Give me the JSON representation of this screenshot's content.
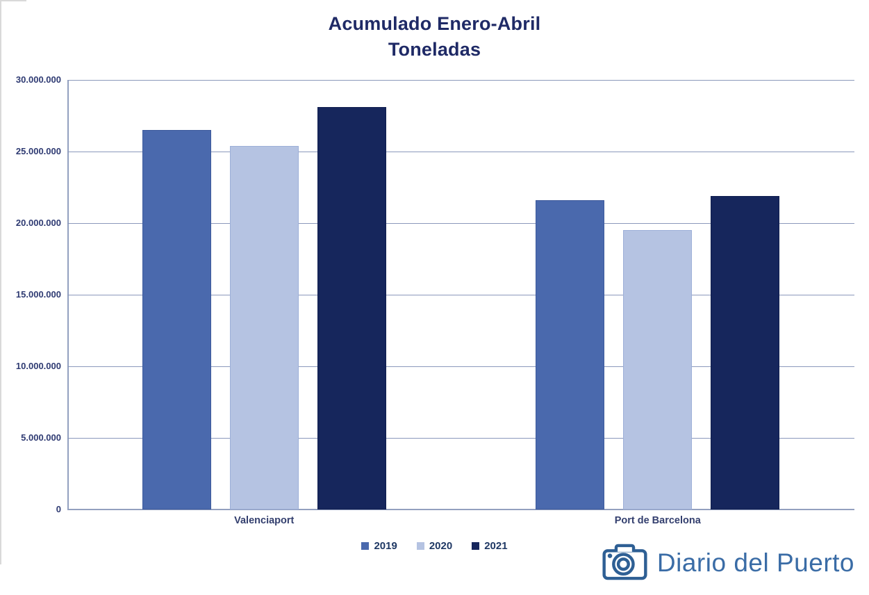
{
  "title": {
    "line1": "Acumulado Enero-Abril",
    "line2": "Toneladas"
  },
  "chart_data": {
    "type": "bar",
    "title": "Acumulado Enero-Abril",
    "subtitle": "Toneladas",
    "categories": [
      "Valenciaport",
      "Port de Barcelona"
    ],
    "series": [
      {
        "name": "2019",
        "color": "#4a69ad",
        "border": "#3d5a9c",
        "values": [
          26500000,
          21600000
        ]
      },
      {
        "name": "2020",
        "color": "#b5c3e2",
        "border": "#9dafd8",
        "values": [
          25400000,
          19500000
        ]
      },
      {
        "name": "2021",
        "color": "#16265c",
        "border": "#0f1d4e",
        "values": [
          28100000,
          21900000
        ]
      }
    ],
    "ylim": [
      0,
      30000000
    ],
    "ytick_step": 5000000,
    "ytick_labels": [
      "0",
      "5.000.000",
      "10.000.000",
      "15.000.000",
      "20.000.000",
      "25.000.000",
      "30.000.000"
    ],
    "grid": true,
    "legend_position": "bottom",
    "xlabel": "",
    "ylabel": ""
  },
  "watermark": {
    "text": "Diario del Puerto",
    "icon": "camera-icon",
    "color": "#3a6ca6"
  },
  "colors": {
    "title_text": "#1f2a66",
    "axis_text": "#2e3a72",
    "gridline": "#8b98bb",
    "background": "#ffffff"
  }
}
